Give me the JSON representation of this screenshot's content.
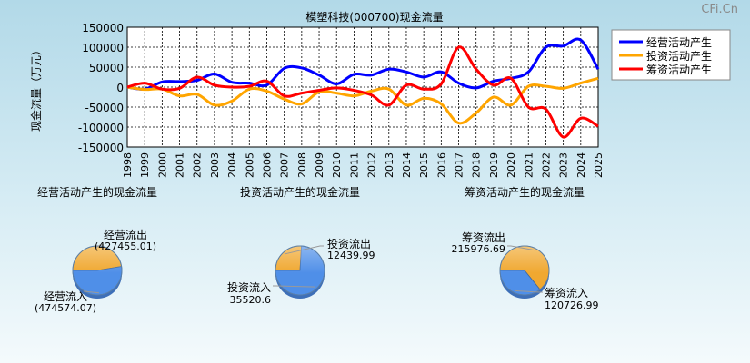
{
  "watermark": "CFi.Cn",
  "chart_data": [
    {
      "type": "line",
      "title": "模塑科技(000700)现金流量",
      "ylabel": "现金流量（万元）",
      "ylim": [
        -150000,
        150000
      ],
      "yticks": [
        150000,
        100000,
        50000,
        0,
        -50000,
        -100000,
        -150000
      ],
      "grid": true,
      "legend_position": "top-right",
      "x": [
        "1998",
        "1999",
        "2000",
        "2001",
        "2002",
        "2003",
        "2004",
        "2005",
        "2006",
        "2007",
        "2008",
        "2009",
        "2010",
        "2011",
        "2012",
        "2013",
        "2014",
        "2015",
        "2016",
        "2017",
        "2018",
        "2019",
        "2020",
        "2021",
        "2022",
        "2023",
        "2024",
        "2025"
      ],
      "series": [
        {
          "name": "经营活动产生",
          "color": "#0000ff",
          "values": [
            0,
            -5000,
            13000,
            14000,
            17000,
            33000,
            12000,
            10000,
            5000,
            47000,
            48000,
            30000,
            8000,
            32000,
            30000,
            45000,
            38000,
            25000,
            38000,
            10000,
            -2000,
            15000,
            22000,
            38000,
            100000,
            103000,
            118000,
            45000
          ]
        },
        {
          "name": "投资活动产生",
          "color": "#ffa500",
          "values": [
            0,
            -6000,
            -5000,
            -22000,
            -18000,
            -45000,
            -35000,
            -5000,
            -10000,
            -30000,
            -42000,
            -12000,
            -15000,
            -22000,
            -10000,
            -5000,
            -45000,
            -28000,
            -42000,
            -90000,
            -65000,
            -25000,
            -45000,
            2000,
            2000,
            -3000,
            10000,
            22000
          ]
        },
        {
          "name": "筹资活动产生",
          "color": "#ff0000",
          "values": [
            0,
            10000,
            -5000,
            -3000,
            25000,
            5000,
            0,
            2000,
            15000,
            -22000,
            -15000,
            -8000,
            -2000,
            -8000,
            -20000,
            -45000,
            5000,
            -5000,
            8000,
            100000,
            45000,
            5000,
            22000,
            -50000,
            -55000,
            -125000,
            -78000,
            -98000
          ]
        }
      ]
    },
    {
      "type": "pie",
      "title": "经营活动产生的现金流量",
      "slices": [
        {
          "label": "经营流出",
          "value_text": "(427455.01)",
          "value": 427455.01,
          "color": "#f0a830"
        },
        {
          "label": "经营流入",
          "value_text": "(474574.07)",
          "value": 474574.07,
          "color": "#4f8fe8"
        }
      ]
    },
    {
      "type": "pie",
      "title": "投资活动产生的现金流量",
      "slices": [
        {
          "label": "投资流出",
          "value_text": "12439.99",
          "value": 12439.99,
          "color": "#f0a830"
        },
        {
          "label": "投资流入",
          "value_text": "35520.6",
          "value": 35520.6,
          "color": "#4f8fe8"
        }
      ]
    },
    {
      "type": "pie",
      "title": "筹资活动产生的现金流量",
      "slices": [
        {
          "label": "筹资流出",
          "value_text": "215976.69",
          "value": 215976.69,
          "color": "#f0a830"
        },
        {
          "label": "筹资流入",
          "value_text": "120726.99",
          "value": 120726.99,
          "color": "#4f8fe8"
        }
      ]
    }
  ]
}
